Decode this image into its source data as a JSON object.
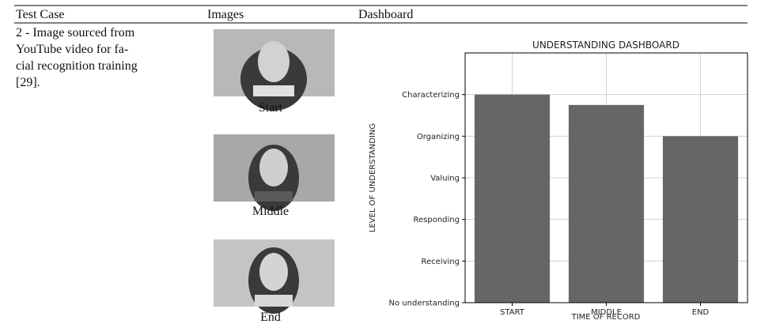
{
  "table": {
    "headers": [
      "Test Case",
      "Images",
      "Dashboard"
    ],
    "rows": [
      {
        "test_case": [
          "2 - Image sourced from",
          "YouTube video for fa-",
          "cial recognition training",
          "[29]."
        ],
        "image_captions": [
          "Start",
          "Middle",
          "End"
        ]
      }
    ]
  },
  "dashboard": {
    "type": "bar",
    "title": "UNDERSTANDING DASHBOARD",
    "xlabel": "TIME OF RECORD",
    "ylabel": "LEVEL OF UNDERSTANDING",
    "categories": [
      "START",
      "MIDDLE",
      "END"
    ],
    "values": [
      5,
      4.75,
      4
    ],
    "color": "#666666",
    "ylim": [
      0,
      6
    ],
    "yticks": [
      {
        "value": 0,
        "label": "No understanding"
      },
      {
        "value": 1,
        "label": "Receiving"
      },
      {
        "value": 2,
        "label": "Responding"
      },
      {
        "value": 3,
        "label": "Valuing"
      },
      {
        "value": 4,
        "label": "Organizing"
      },
      {
        "value": 5,
        "label": "Characterizing"
      }
    ],
    "grid": true
  }
}
